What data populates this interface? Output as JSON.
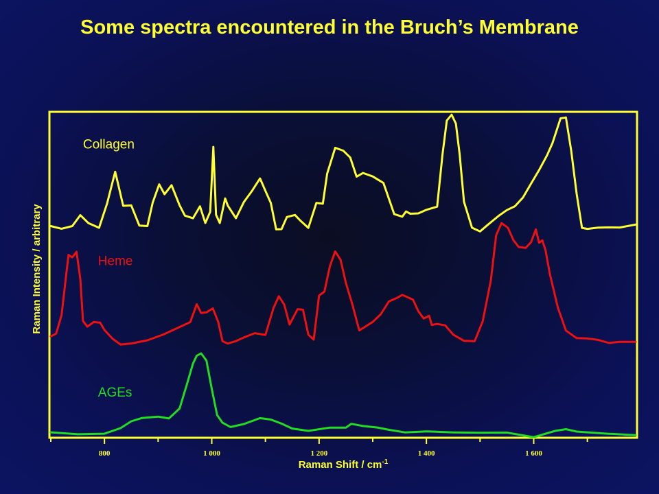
{
  "chart_data": {
    "type": "line",
    "title": "Some spectra encountered in the Bruch’s Membrane",
    "xlabel": "Raman Shift / cm",
    "xlabel_sup": "-1",
    "ylabel": "Raman Intensity / arbitrary",
    "xlim": [
      700,
      1790
    ],
    "ylim": [
      0,
      10
    ],
    "xticks": [
      800,
      1000,
      1200,
      1400,
      1600
    ],
    "xtick_labels": [
      "800",
      "1 000",
      "1 200",
      "1 400",
      "1 600"
    ],
    "grid": false,
    "legend": "inline labels",
    "series": [
      {
        "name": "Collagen",
        "color": "#ffff33",
        "x": [
          700,
          720,
          740,
          755,
          770,
          790,
          805,
          820,
          835,
          850,
          865,
          880,
          890,
          902,
          912,
          925,
          940,
          950,
          965,
          978,
          988,
          997,
          1003,
          1008,
          1015,
          1025,
          1030,
          1045,
          1060,
          1075,
          1090,
          1100,
          1110,
          1120,
          1130,
          1140,
          1155,
          1165,
          1180,
          1195,
          1207,
          1215,
          1230,
          1245,
          1258,
          1270,
          1282,
          1300,
          1320,
          1340,
          1355,
          1362,
          1370,
          1385,
          1400,
          1420,
          1430,
          1438,
          1447,
          1455,
          1462,
          1470,
          1485,
          1500,
          1515,
          1535,
          1550,
          1565,
          1580,
          1595,
          1610,
          1625,
          1635,
          1650,
          1660,
          1670,
          1680,
          1690,
          1700,
          1720,
          1740,
          1760,
          1790
        ],
        "values": [
          6.55,
          6.5,
          6.6,
          6.9,
          6.65,
          6.55,
          7.3,
          8.25,
          7.2,
          7.25,
          6.6,
          6.55,
          7.3,
          7.9,
          7.6,
          7.85,
          7.2,
          6.9,
          6.85,
          7.2,
          6.65,
          7.0,
          9.05,
          6.95,
          6.7,
          7.45,
          7.2,
          6.8,
          7.35,
          7.7,
          8.05,
          7.65,
          7.3,
          6.5,
          6.5,
          6.85,
          6.9,
          6.75,
          6.55,
          7.3,
          7.25,
          8.2,
          9.05,
          8.95,
          8.7,
          8.1,
          8.25,
          8.15,
          7.9,
          6.95,
          6.9,
          7.05,
          6.95,
          6.95,
          7.1,
          7.2,
          8.8,
          9.85,
          10.05,
          9.8,
          8.85,
          7.35,
          6.5,
          6.4,
          6.65,
          6.9,
          7.05,
          7.2,
          7.5,
          7.9,
          8.3,
          8.8,
          9.2,
          9.95,
          9.95,
          8.9,
          7.6,
          6.55,
          6.5,
          6.5,
          6.55,
          6.55,
          6.6
        ],
        "label_xy": [
          760,
          9.0
        ]
      },
      {
        "name": "Heme",
        "color": "#ee1111",
        "x": [
          700,
          710,
          720,
          733,
          740,
          748,
          755,
          760,
          768,
          780,
          792,
          800,
          815,
          830,
          850,
          880,
          910,
          940,
          960,
          972,
          980,
          990,
          1002,
          1012,
          1020,
          1030,
          1045,
          1060,
          1080,
          1100,
          1115,
          1125,
          1135,
          1145,
          1160,
          1170,
          1180,
          1190,
          1200,
          1210,
          1220,
          1230,
          1240,
          1250,
          1262,
          1275,
          1290,
          1300,
          1315,
          1330,
          1345,
          1355,
          1365,
          1375,
          1385,
          1395,
          1405,
          1410,
          1420,
          1435,
          1450,
          1470,
          1490,
          1505,
          1520,
          1530,
          1540,
          1552,
          1562,
          1572,
          1585,
          1595,
          1604,
          1610,
          1616,
          1622,
          1630,
          1645,
          1660,
          1680,
          1700,
          1720,
          1740,
          1760,
          1790
        ],
        "values": [
          3.1,
          3.2,
          3.8,
          5.7,
          5.6,
          5.75,
          4.9,
          3.6,
          3.45,
          3.6,
          3.55,
          3.3,
          3.05,
          2.9,
          2.9,
          3.0,
          3.2,
          3.4,
          3.6,
          4.15,
          3.85,
          3.85,
          4.0,
          3.6,
          3.0,
          2.9,
          2.95,
          3.1,
          3.25,
          3.15,
          4.0,
          4.4,
          4.15,
          3.5,
          3.95,
          3.95,
          3.2,
          3.05,
          4.4,
          4.5,
          5.3,
          5.8,
          5.55,
          4.8,
          4.1,
          3.3,
          3.5,
          3.6,
          3.8,
          4.2,
          4.35,
          4.45,
          4.35,
          4.25,
          3.9,
          3.7,
          3.8,
          3.5,
          3.5,
          3.45,
          3.2,
          3.0,
          2.95,
          3.6,
          4.9,
          6.3,
          6.65,
          6.5,
          6.15,
          5.95,
          5.9,
          6.05,
          6.45,
          6.05,
          6.15,
          5.85,
          5.1,
          4.0,
          3.3,
          3.1,
          3.05,
          3.0,
          2.95,
          2.95,
          2.95
        ],
        "label_xy": [
          788,
          5.35
        ]
      },
      {
        "name": "AGEs",
        "color": "#22dd22",
        "x": [
          700,
          750,
          800,
          830,
          850,
          870,
          900,
          920,
          940,
          955,
          965,
          972,
          980,
          990,
          1000,
          1010,
          1020,
          1035,
          1060,
          1090,
          1110,
          1130,
          1150,
          1180,
          1220,
          1250,
          1260,
          1280,
          1310,
          1330,
          1360,
          1400,
          1450,
          1500,
          1550,
          1600,
          1640,
          1660,
          1680,
          1700,
          1740,
          1790
        ],
        "values": [
          0.1,
          0.08,
          0.1,
          0.25,
          0.45,
          0.6,
          0.6,
          0.55,
          0.9,
          1.7,
          2.25,
          2.5,
          2.6,
          2.4,
          1.5,
          0.65,
          0.4,
          0.3,
          0.4,
          0.55,
          0.55,
          0.4,
          0.22,
          0.2,
          0.25,
          0.3,
          0.4,
          0.3,
          0.3,
          0.2,
          0.12,
          0.15,
          0.15,
          0.1,
          0.1,
          0.0,
          0.15,
          0.25,
          0.15,
          0.1,
          0.1,
          0.05
        ],
        "label_xy": [
          788,
          1.25
        ]
      }
    ]
  }
}
